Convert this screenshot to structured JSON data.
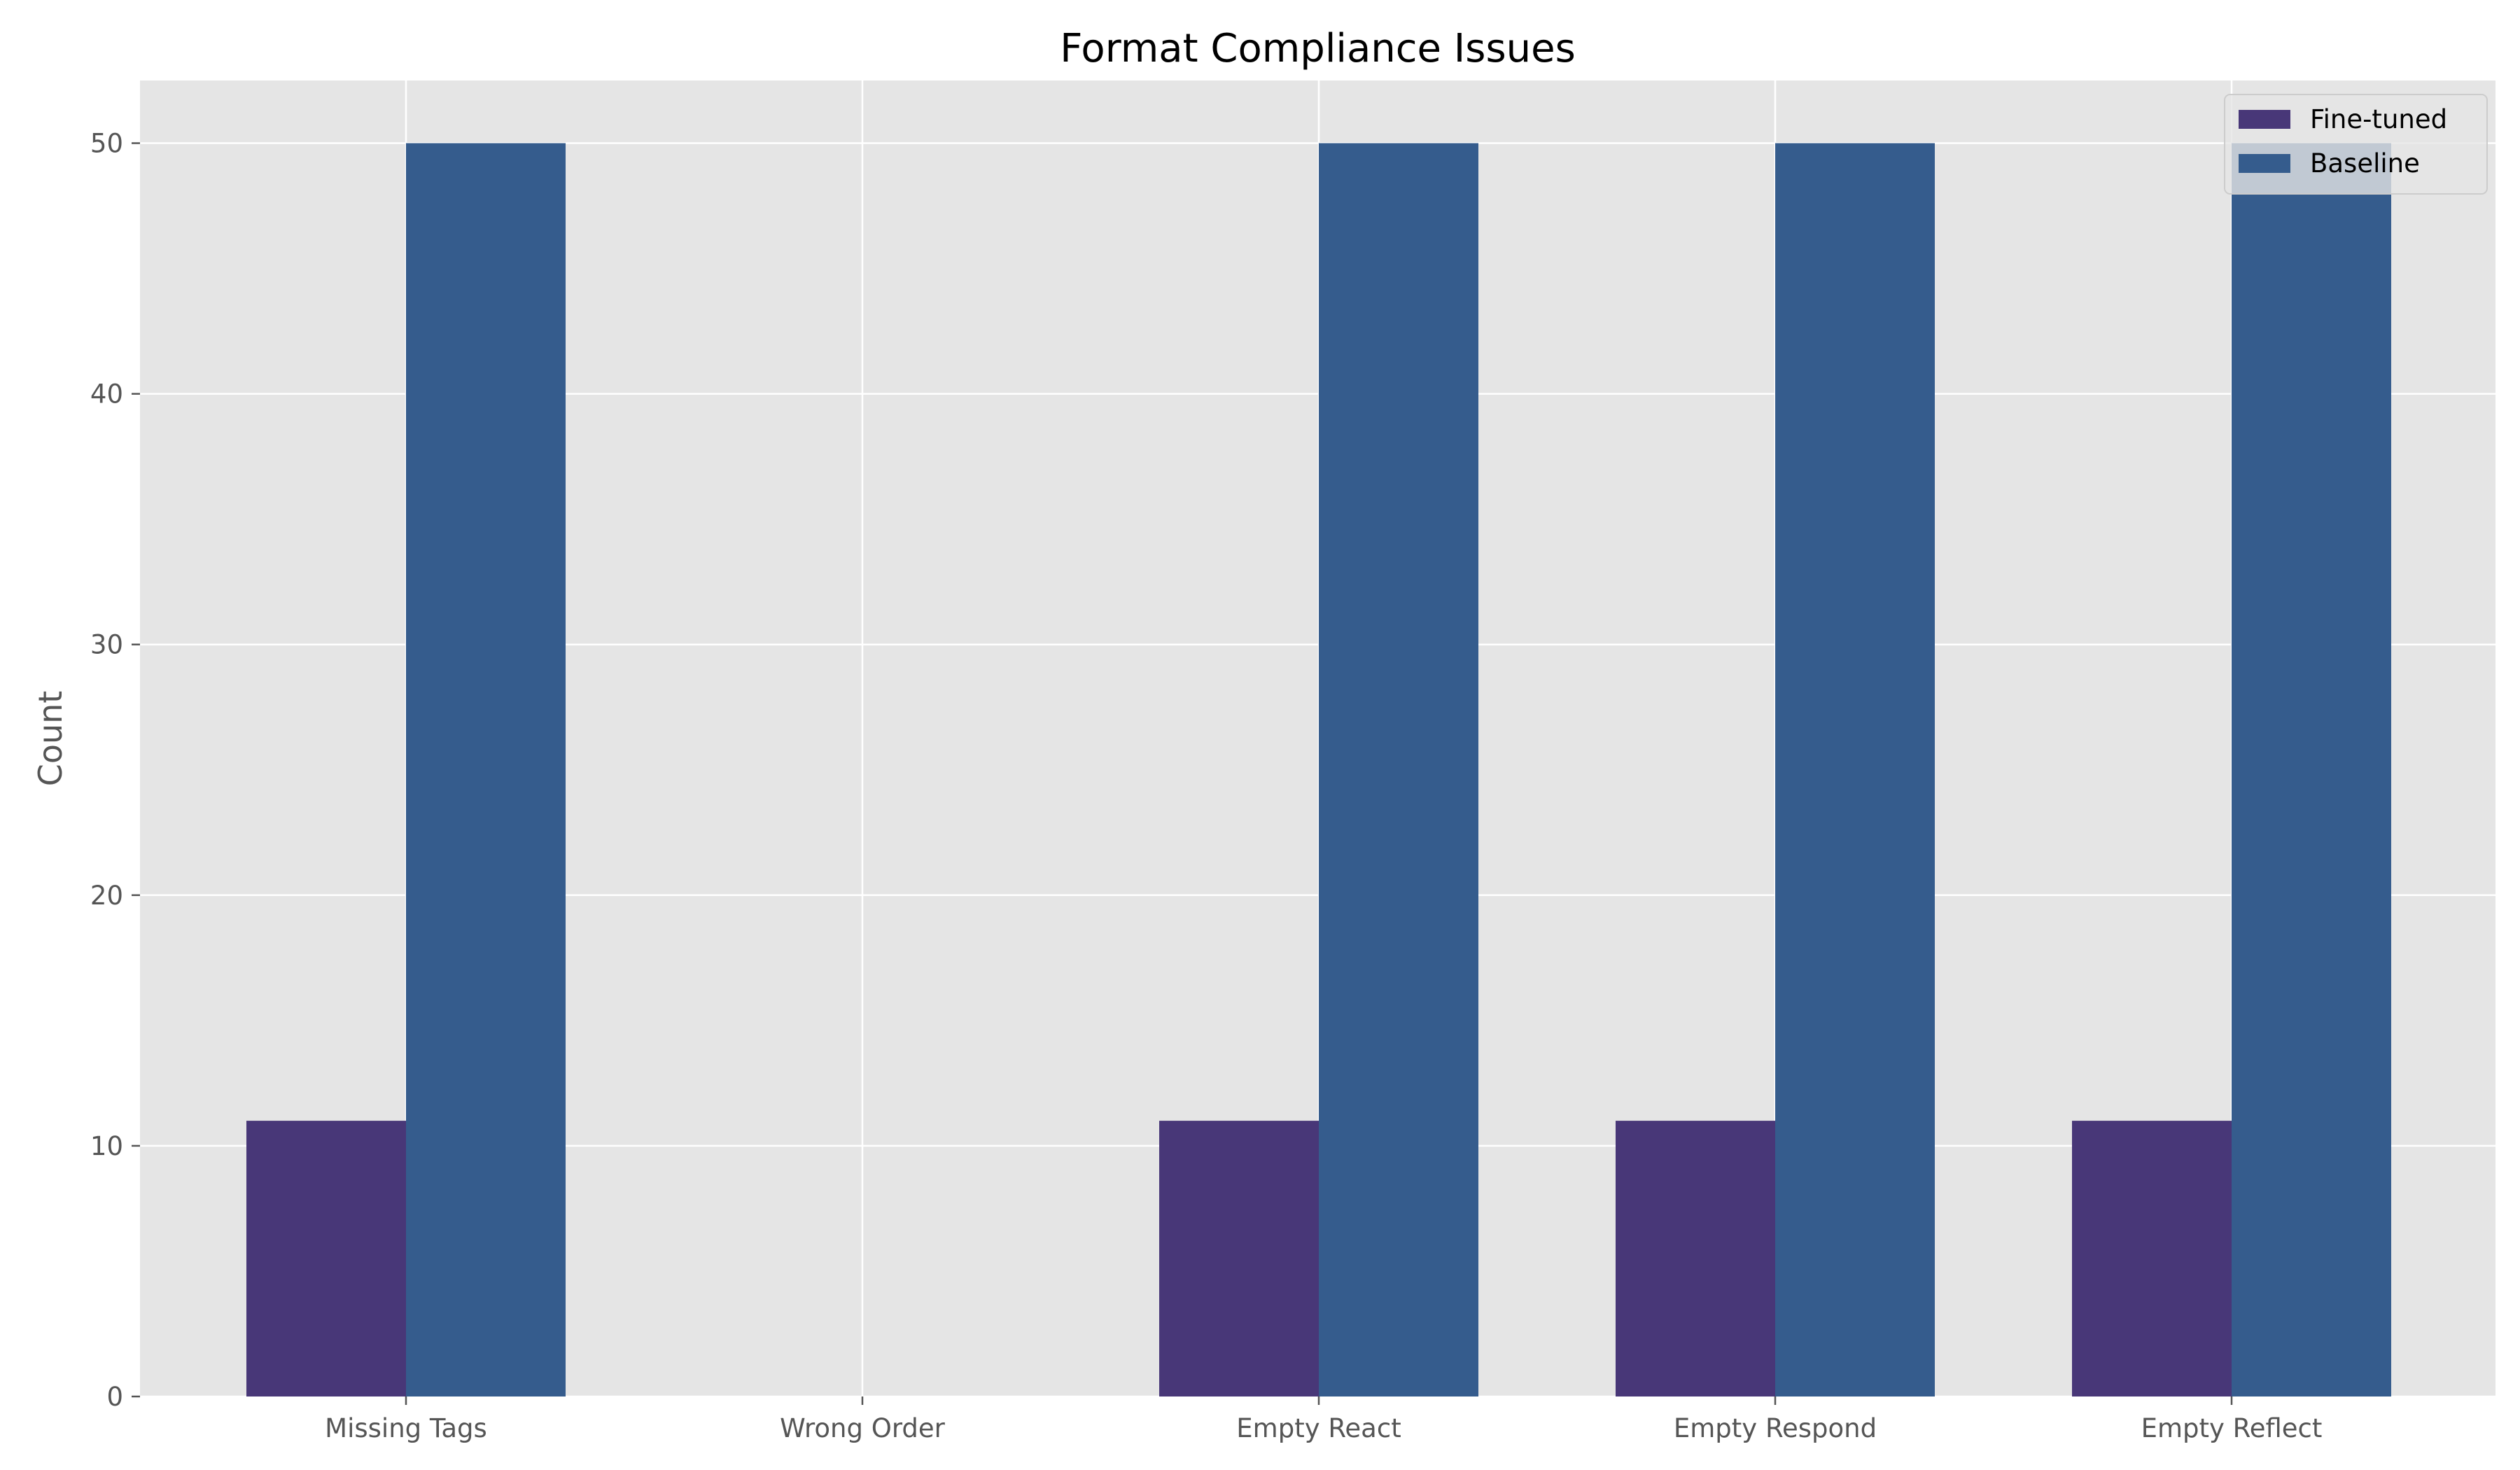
{
  "chart_data": {
    "type": "bar",
    "title": "Format Compliance Issues",
    "xlabel": "",
    "ylabel": "Count",
    "categories": [
      "Missing Tags",
      "Wrong Order",
      "Empty React",
      "Empty Respond",
      "Empty Reflect"
    ],
    "series": [
      {
        "name": "Fine-tuned",
        "values": [
          11,
          0,
          11,
          11,
          11
        ],
        "color": "#483778"
      },
      {
        "name": "Baseline",
        "values": [
          50,
          0,
          50,
          50,
          50
        ],
        "color": "#355c8d"
      }
    ],
    "ylim": [
      0,
      52.5
    ],
    "yticks": [
      0,
      10,
      20,
      30,
      40,
      50
    ],
    "grid": true,
    "legend_position": "top-right",
    "colors": {
      "plot_background": "#e5e5e5",
      "grid": "#ffffff",
      "tick_text": "#555555"
    }
  }
}
